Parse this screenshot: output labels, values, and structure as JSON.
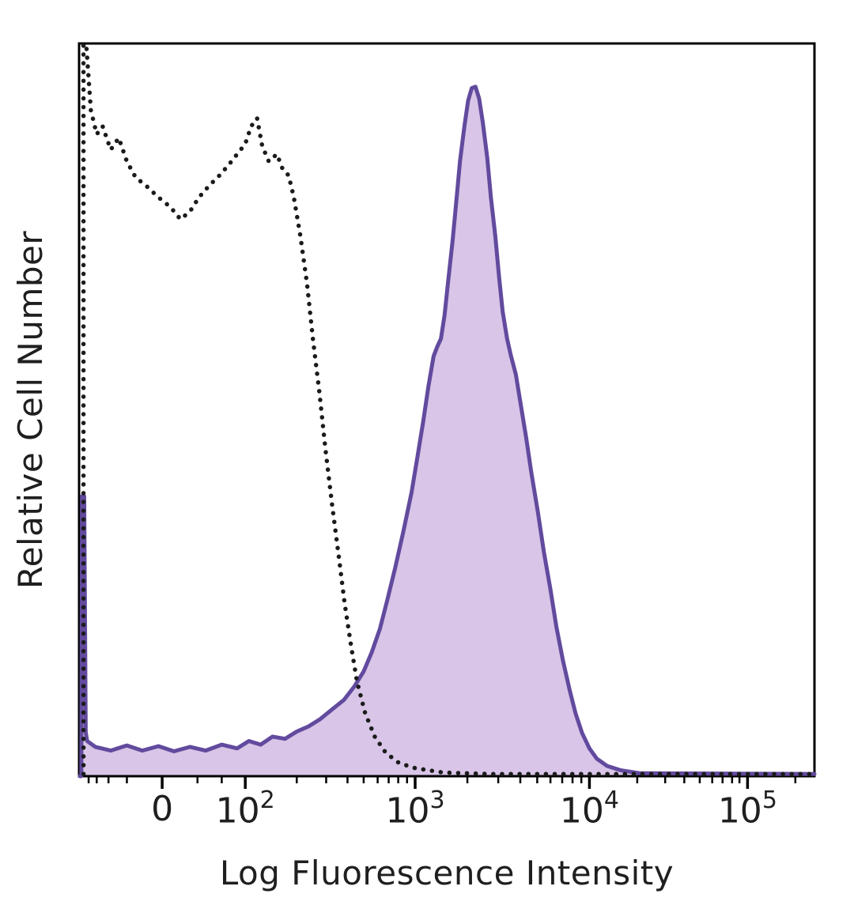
{
  "figure": {
    "background": "#ffffff",
    "frame_color": "#000000"
  },
  "chart_data": {
    "type": "area",
    "subtype": "flow-cytometry-histogram-overlay",
    "title": "",
    "xlabel": "Log Fluorescence Intensity",
    "ylabel": "Relative Cell Number",
    "x_scale": "biexponential-log",
    "grid": false,
    "legend": "none",
    "ylim": [
      0,
      1
    ],
    "y_ticks": [],
    "x_ticks": [
      {
        "label": "0",
        "sup": "",
        "pos": 0.113
      },
      {
        "label": "10",
        "sup": "2",
        "pos": 0.226
      },
      {
        "label": "10",
        "sup": "3",
        "pos": 0.457
      },
      {
        "label": "10",
        "sup": "4",
        "pos": 0.694
      },
      {
        "label": "10",
        "sup": "5",
        "pos": 0.909
      }
    ],
    "x_minor_ticks": [
      0.013,
      0.024,
      0.04,
      0.065,
      0.161,
      0.194,
      0.296,
      0.336,
      0.365,
      0.387,
      0.406,
      0.421,
      0.434,
      0.446,
      0.528,
      0.57,
      0.6,
      0.623,
      0.641,
      0.657,
      0.671,
      0.683,
      0.759,
      0.797,
      0.823,
      0.844,
      0.861,
      0.875,
      0.888,
      0.898,
      0.974
    ],
    "series": [
      {
        "name": "control-dotted-histogram",
        "line_style": "dotted",
        "color": "#1b1b1b",
        "fill": "none",
        "points": [
          [
            0.006,
            0.003
          ],
          [
            0.006,
            1.0
          ],
          [
            0.01,
            0.995
          ],
          [
            0.016,
            0.909
          ],
          [
            0.024,
            0.876
          ],
          [
            0.032,
            0.887
          ],
          [
            0.043,
            0.855
          ],
          [
            0.054,
            0.871
          ],
          [
            0.065,
            0.839
          ],
          [
            0.077,
            0.817
          ],
          [
            0.091,
            0.806
          ],
          [
            0.108,
            0.79
          ],
          [
            0.124,
            0.777
          ],
          [
            0.138,
            0.76
          ],
          [
            0.151,
            0.771
          ],
          [
            0.163,
            0.79
          ],
          [
            0.177,
            0.806
          ],
          [
            0.191,
            0.82
          ],
          [
            0.204,
            0.835
          ],
          [
            0.215,
            0.849
          ],
          [
            0.226,
            0.863
          ],
          [
            0.234,
            0.887
          ],
          [
            0.242,
            0.898
          ],
          [
            0.249,
            0.86
          ],
          [
            0.258,
            0.839
          ],
          [
            0.269,
            0.849
          ],
          [
            0.277,
            0.828
          ],
          [
            0.285,
            0.82
          ],
          [
            0.292,
            0.79
          ],
          [
            0.301,
            0.737
          ],
          [
            0.31,
            0.672
          ],
          [
            0.318,
            0.597
          ],
          [
            0.327,
            0.522
          ],
          [
            0.335,
            0.446
          ],
          [
            0.344,
            0.371
          ],
          [
            0.353,
            0.301
          ],
          [
            0.361,
            0.237
          ],
          [
            0.37,
            0.177
          ],
          [
            0.378,
            0.129
          ],
          [
            0.389,
            0.086
          ],
          [
            0.402,
            0.054
          ],
          [
            0.417,
            0.032
          ],
          [
            0.435,
            0.018
          ],
          [
            0.457,
            0.011
          ],
          [
            0.495,
            0.005
          ],
          [
            0.559,
            0.003
          ],
          [
            1.0,
            0.003
          ]
        ]
      },
      {
        "name": "stained-filled-histogram",
        "line_style": "solid",
        "color": "#624a9e",
        "fill": "#d8c5e7",
        "points": [
          [
            0.001,
            0.0
          ],
          [
            0.003,
            0.0
          ],
          [
            0.004,
            0.382
          ],
          [
            0.007,
            0.382
          ],
          [
            0.009,
            0.06
          ],
          [
            0.011,
            0.048
          ],
          [
            0.022,
            0.04
          ],
          [
            0.043,
            0.035
          ],
          [
            0.065,
            0.042
          ],
          [
            0.086,
            0.035
          ],
          [
            0.108,
            0.041
          ],
          [
            0.129,
            0.034
          ],
          [
            0.151,
            0.04
          ],
          [
            0.172,
            0.035
          ],
          [
            0.194,
            0.043
          ],
          [
            0.215,
            0.038
          ],
          [
            0.231,
            0.048
          ],
          [
            0.247,
            0.043
          ],
          [
            0.263,
            0.054
          ],
          [
            0.28,
            0.051
          ],
          [
            0.296,
            0.061
          ],
          [
            0.312,
            0.068
          ],
          [
            0.328,
            0.078
          ],
          [
            0.344,
            0.091
          ],
          [
            0.36,
            0.104
          ],
          [
            0.374,
            0.122
          ],
          [
            0.387,
            0.143
          ],
          [
            0.398,
            0.169
          ],
          [
            0.409,
            0.201
          ],
          [
            0.419,
            0.24
          ],
          [
            0.43,
            0.285
          ],
          [
            0.441,
            0.334
          ],
          [
            0.452,
            0.387
          ],
          [
            0.46,
            0.435
          ],
          [
            0.468,
            0.484
          ],
          [
            0.475,
            0.532
          ],
          [
            0.482,
            0.573
          ],
          [
            0.487,
            0.586
          ],
          [
            0.492,
            0.597
          ],
          [
            0.497,
            0.629
          ],
          [
            0.502,
            0.677
          ],
          [
            0.508,
            0.731
          ],
          [
            0.513,
            0.785
          ],
          [
            0.518,
            0.839
          ],
          [
            0.524,
            0.887
          ],
          [
            0.529,
            0.922
          ],
          [
            0.534,
            0.939
          ],
          [
            0.539,
            0.941
          ],
          [
            0.544,
            0.925
          ],
          [
            0.549,
            0.892
          ],
          [
            0.555,
            0.844
          ],
          [
            0.56,
            0.79
          ],
          [
            0.566,
            0.737
          ],
          [
            0.571,
            0.683
          ],
          [
            0.576,
            0.634
          ],
          [
            0.582,
            0.597
          ],
          [
            0.587,
            0.575
          ],
          [
            0.594,
            0.548
          ],
          [
            0.6,
            0.511
          ],
          [
            0.608,
            0.462
          ],
          [
            0.615,
            0.414
          ],
          [
            0.624,
            0.36
          ],
          [
            0.632,
            0.306
          ],
          [
            0.641,
            0.255
          ],
          [
            0.649,
            0.204
          ],
          [
            0.658,
            0.158
          ],
          [
            0.667,
            0.118
          ],
          [
            0.675,
            0.086
          ],
          [
            0.684,
            0.059
          ],
          [
            0.694,
            0.038
          ],
          [
            0.704,
            0.024
          ],
          [
            0.718,
            0.014
          ],
          [
            0.737,
            0.008
          ],
          [
            0.763,
            0.004
          ],
          [
            1.0,
            0.003
          ]
        ]
      }
    ]
  }
}
